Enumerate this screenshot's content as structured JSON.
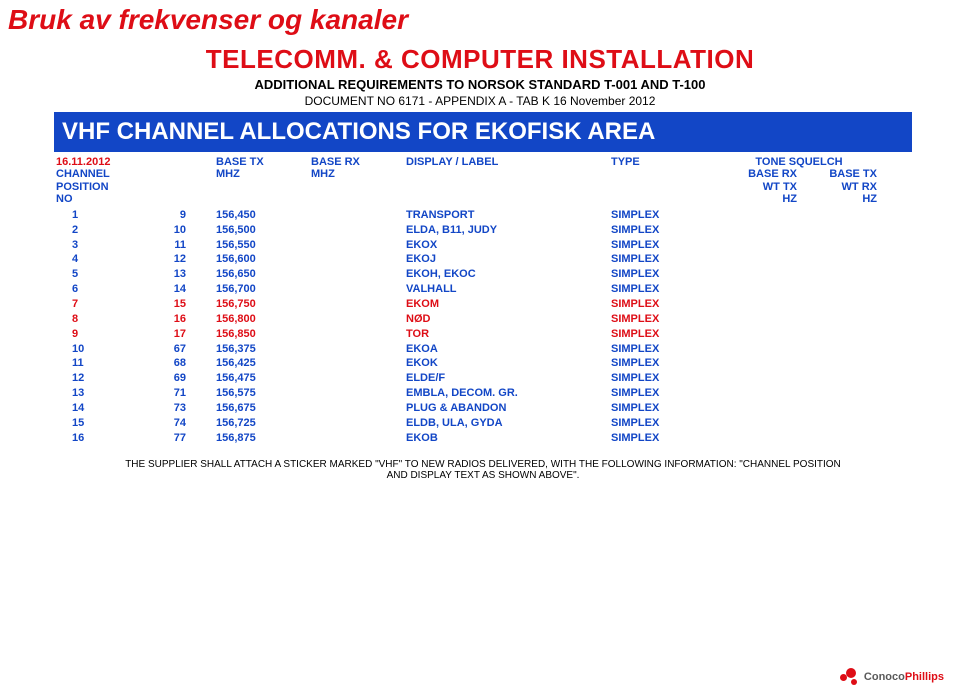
{
  "page_header": "Bruk av frekvenser og kanaler",
  "doc_title": "TELECOMM. & COMPUTER INSTALLATION",
  "doc_sub": "ADDITIONAL REQUIREMENTS TO NORSOK STANDARD T-001 AND T-100",
  "doc_info": "DOCUMENT NO 6171   -   APPENDIX  A - TAB K  16 November 2012",
  "banner": "VHF CHANNEL ALLOCATIONS FOR EKOFISK AREA",
  "info_row": {
    "date": "16.11.2012",
    "basetx": "BASE TX",
    "baserx": "BASE RX",
    "display": "DISPLAY / LABEL",
    "type": "TYPE",
    "tone": "TONE SQUELCH"
  },
  "labels": {
    "c1a": "CHANNEL",
    "c1b": "POSITION",
    "c1c": "NO",
    "c3": "MHZ",
    "c4": "MHZ",
    "c7a": "BASE RX",
    "c7b": "WT TX",
    "c7c": "HZ",
    "c8a": "BASE TX",
    "c8b": "WT RX",
    "c8c": "HZ"
  },
  "rows": [
    {
      "no": "1",
      "ch": "9",
      "mhz": "156,450",
      "label": "TRANSPORT",
      "type": "SIMPLEX",
      "red": false
    },
    {
      "no": "2",
      "ch": "10",
      "mhz": "156,500",
      "label": "ELDA, B11, JUDY",
      "type": "SIMPLEX",
      "red": false
    },
    {
      "no": "3",
      "ch": "11",
      "mhz": "156,550",
      "label": "EKOX",
      "type": "SIMPLEX",
      "red": false
    },
    {
      "no": "4",
      "ch": "12",
      "mhz": "156,600",
      "label": "EKOJ",
      "type": "SIMPLEX",
      "red": false
    },
    {
      "no": "5",
      "ch": "13",
      "mhz": "156,650",
      "label": "EKOH, EKOC",
      "type": "SIMPLEX",
      "red": false
    },
    {
      "no": "6",
      "ch": "14",
      "mhz": "156,700",
      "label": "VALHALL",
      "type": "SIMPLEX",
      "red": false
    },
    {
      "no": "7",
      "ch": "15",
      "mhz": "156,750",
      "label": "EKOM",
      "type": "SIMPLEX",
      "red": true
    },
    {
      "no": "8",
      "ch": "16",
      "mhz": "156,800",
      "label": "NØD",
      "type": "SIMPLEX",
      "red": true
    },
    {
      "no": "9",
      "ch": "17",
      "mhz": "156,850",
      "label": "TOR",
      "type": "SIMPLEX",
      "red": true
    },
    {
      "no": "10",
      "ch": "67",
      "mhz": "156,375",
      "label": "EKOA",
      "type": "SIMPLEX",
      "red": false
    },
    {
      "no": "11",
      "ch": "68",
      "mhz": "156,425",
      "label": "EKOK",
      "type": "SIMPLEX",
      "red": false
    },
    {
      "no": "12",
      "ch": "69",
      "mhz": "156,475",
      "label": "ELDE/F",
      "type": "SIMPLEX",
      "red": false
    },
    {
      "no": "13",
      "ch": "71",
      "mhz": "156,575",
      "label": "EMBLA, DECOM. GR.",
      "type": "SIMPLEX",
      "red": false
    },
    {
      "no": "14",
      "ch": "73",
      "mhz": "156,675",
      "label": "PLUG & ABANDON",
      "type": "SIMPLEX",
      "red": false
    },
    {
      "no": "15",
      "ch": "74",
      "mhz": "156,725",
      "label": "ELDB, ULA, GYDA",
      "type": "SIMPLEX",
      "red": false
    },
    {
      "no": "16",
      "ch": "77",
      "mhz": "156,875",
      "label": "EKOB",
      "type": "SIMPLEX",
      "red": false
    }
  ],
  "footer_note": "THE SUPPLIER SHALL ATTACH A STICKER MARKED \"VHF\" TO NEW RADIOS DELIVERED, WITH THE FOLLOWING INFORMATION: \"CHANNEL POSITION AND DISPLAY TEXT AS SHOWN ABOVE\".",
  "logo_text_a": "Conoco",
  "logo_text_b": "Phillips",
  "colors": {
    "red": "#de0d16",
    "blue": "#1246c6",
    "banner_bg": "#1246c6",
    "banner_fg": "#ffffff",
    "black": "#000000"
  }
}
